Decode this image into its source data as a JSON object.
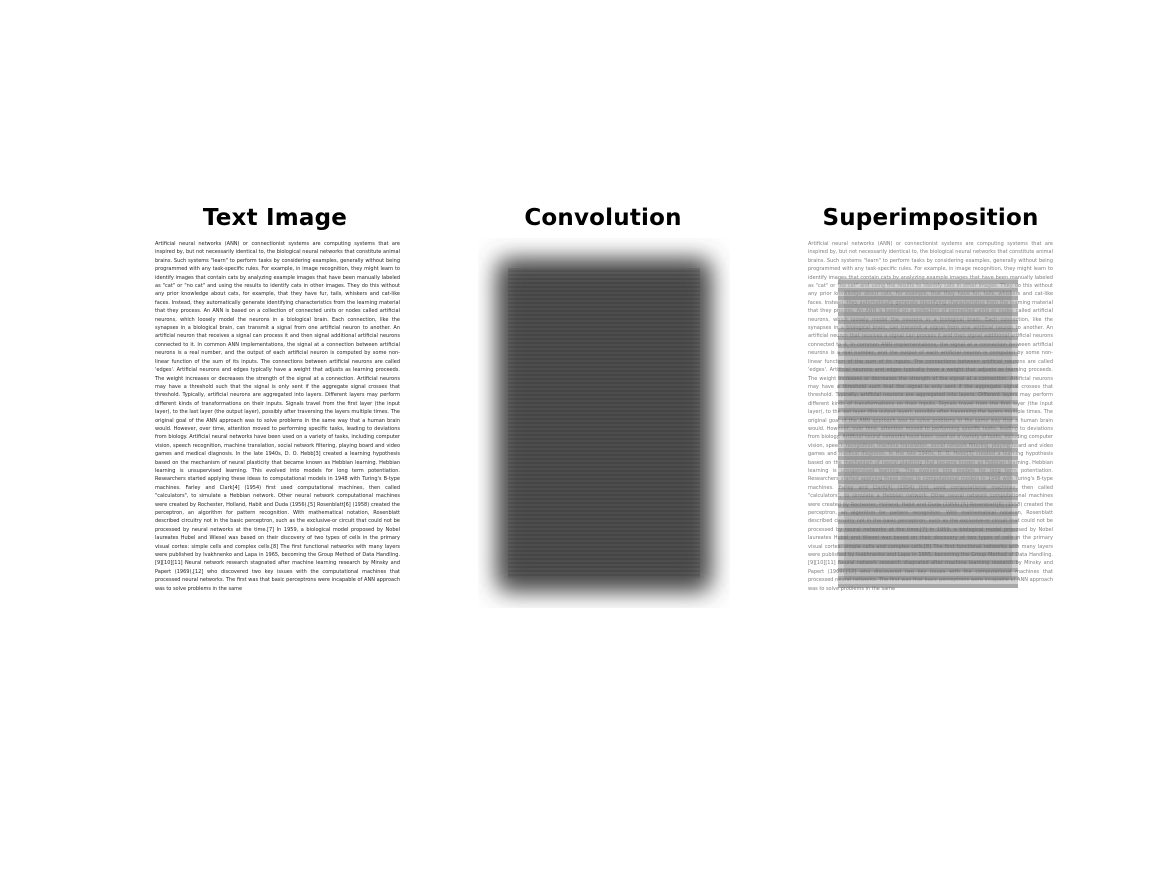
{
  "panels": [
    {
      "title": "Text Image"
    },
    {
      "title": "Convolution"
    },
    {
      "title": "Superimposition"
    }
  ],
  "body_text": "Artificial neural networks (ANN) or connectionist systems are computing systems that are inspired by, but not necessarily identical to, the biological neural networks that constitute animal brains. Such systems \"learn\" to perform tasks by considering examples, generally without being programmed with any task-specific rules. For example, in image recognition, they might learn to identify images that contain cats by analyzing example images that have been manually labeled as \"cat\" or \"no cat\" and using the results to identify cats in other images. They do this without any prior knowledge about cats, for example, that they have fur, tails, whiskers and cat-like faces. Instead, they automatically generate identifying characteristics from the learning material that they process. An ANN is based on a collection of connected units or nodes called artificial neurons, which loosely model the neurons in a biological brain. Each connection, like the synapses in a biological brain, can transmit a signal from one artificial neuron to another. An artificial neuron that receives a signal can process it and then signal additional artificial neurons connected to it. In common ANN implementations, the signal at a connection between artificial neurons is a real number, and the output of each artificial neuron is computed by some non-linear function of the sum of its inputs. The connections between artificial neurons are called 'edges'. Artificial neurons and edges typically have a weight that adjusts as learning proceeds. The weight increases or decreases the strength of the signal at a connection. Artificial neurons may have a threshold such that the signal is only sent if the aggregate signal crosses that threshold. Typically, artificial neurons are aggregated into layers. Different layers may perform different kinds of transformations on their inputs. Signals travel from the first layer (the input layer), to the last layer (the output layer), possibly after traversing the layers multiple times. The original goal of the ANN approach was to solve problems in the same way that a human brain would. However, over time, attention moved to performing specific tasks, leading to deviations from biology. Artificial neural networks have been used on a variety of tasks, including computer vision, speech recognition, machine translation, social network filtering, playing board and video games and medical diagnosis. In the late 1940s, D. O. Hebb[3] created a learning hypothesis based on the mechanism of neural plasticity that became known as Hebbian learning. Hebbian learning is unsupervised learning. This evolved into models for long term potentiation. Researchers started applying these ideas to computational models in 1948 with Turing's B-type machines. Farley and Clark[4] (1954) first used computational machines, then called \"calculators\", to simulate a Hebbian network. Other neural network computational machines were created by Rochester, Holland, Habit and Duda (1956).[5] Rosenblatt[6] (1958) created the perceptron, an algorithm for pattern recognition. With mathematical notation, Rosenblatt described circuitry not in the basic perceptron, such as the exclusive-or circuit that could not be processed by neural networks at the time.[7] In 1959, a biological model proposed by Nobel laureates Hubel and Wiesel was based on their discovery of two types of cells in the primary visual cortex: simple cells and complex cells.[8] The first functional networks with many layers were published by Ivakhnenko and Lapa in 1965, becoming the Group Method of Data Handling.[9][10][11] Neural network research stagnated after machine learning research by Minsky and Papert (1969),[12] who discovered two key issues with the computational machines that processed neural networks. The first was that basic perceptrons were incapable of ANN approach was to solve problems in the same"
}
